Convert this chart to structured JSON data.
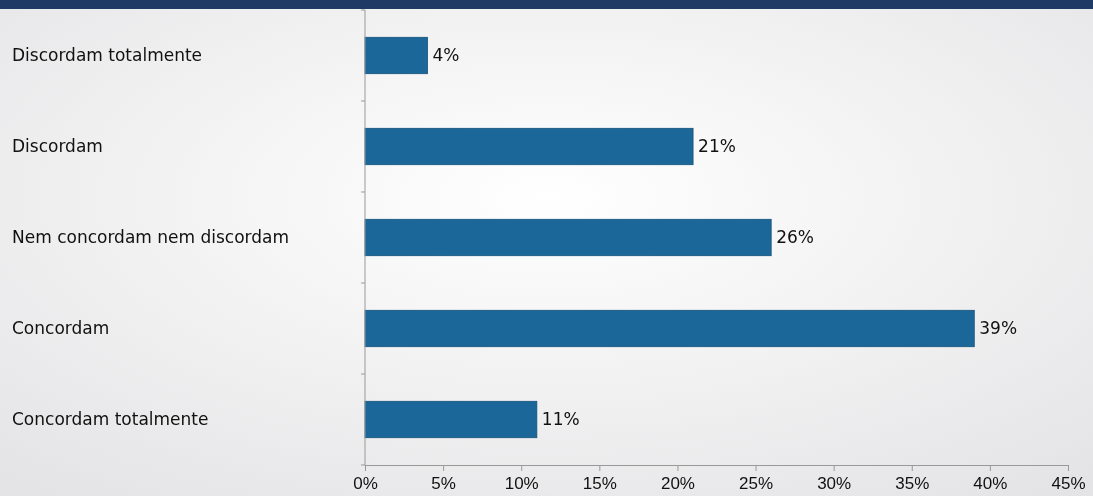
{
  "chart_data": {
    "type": "bar",
    "orientation": "horizontal",
    "categories": [
      "Discordam totalmente",
      "Discordam",
      "Nem concordam nem discordam",
      "Concordam",
      "Concordam totalmente"
    ],
    "values": [
      4,
      21,
      26,
      39,
      11
    ],
    "value_labels": [
      "4%",
      "21%",
      "26%",
      "39%",
      "11%"
    ],
    "color": "#1c6799",
    "xlim": [
      0,
      45
    ],
    "xticks": [
      {
        "value": 0,
        "label": "0%"
      },
      {
        "value": 5,
        "label": "5%"
      },
      {
        "value": 10,
        "label": "10%"
      },
      {
        "value": 15,
        "label": "15%"
      },
      {
        "value": 20,
        "label": "20%"
      },
      {
        "value": 25,
        "label": "25%"
      },
      {
        "value": 30,
        "label": "30%"
      },
      {
        "value": 35,
        "label": "35%"
      },
      {
        "value": 40,
        "label": "40%"
      },
      {
        "value": 45,
        "label": "45%"
      }
    ],
    "data_labels": true
  }
}
